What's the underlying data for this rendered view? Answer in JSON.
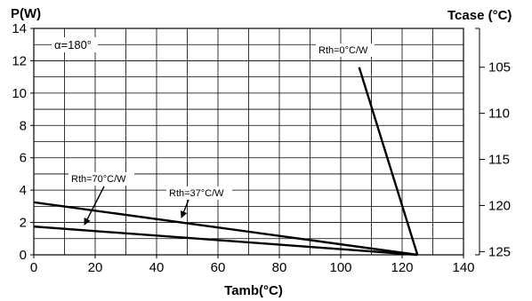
{
  "chart_data": {
    "type": "line",
    "xlabel": "Tamb(°C)",
    "ylabel": "P(W)",
    "y2label": "Tcase (°C)",
    "xlim": [
      0,
      140
    ],
    "ylim": [
      0,
      14
    ],
    "x_ticks": [
      0,
      20,
      40,
      60,
      80,
      100,
      120,
      140
    ],
    "y_ticks": [
      0,
      2,
      4,
      6,
      8,
      10,
      12,
      14
    ],
    "y2_ticks": [
      105,
      110,
      115,
      120,
      125
    ],
    "y2_tick_at_y": [
      11.6,
      8.75,
      5.9,
      3.05,
      0.2
    ],
    "grid": true,
    "series": [
      {
        "name": "Rth=0°C/W",
        "x": [
          106,
          125
        ],
        "y": [
          11.6,
          0
        ]
      },
      {
        "name": "Rth=37°C/W",
        "x": [
          0,
          125
        ],
        "y": [
          3.25,
          0
        ]
      },
      {
        "name": "Rth=70°C/W",
        "x": [
          0,
          125
        ],
        "y": [
          1.75,
          0
        ]
      }
    ],
    "annotations": [
      {
        "id": "alpha",
        "text": "α=180°"
      },
      {
        "id": "rth0",
        "text": "Rth=0°C/W"
      },
      {
        "id": "rth37",
        "text": "Rth=37°C/W"
      },
      {
        "id": "rth70",
        "text": "Rth=70°C/W"
      }
    ]
  }
}
